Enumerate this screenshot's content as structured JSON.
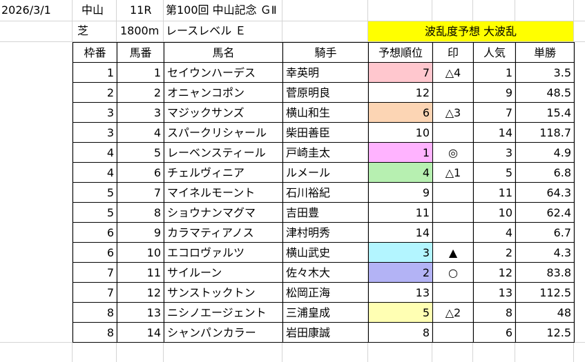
{
  "header": {
    "date": "2026/3/1",
    "venue": "中山",
    "race_no": "11R",
    "race_name": "第100回 中山記念 ＧⅡ",
    "surface": "芝",
    "distance": "1800m",
    "level": "レースレベル Ｅ",
    "forecast": "波乱度予想 大波乱"
  },
  "table": {
    "columns": [
      "枠番",
      "馬番",
      "馬名",
      "騎手",
      "予想順位",
      "印",
      "人気",
      "単勝"
    ],
    "rows": [
      {
        "waku": "1",
        "uma": "1",
        "name": "セイウンハーデス",
        "jockey": "幸英明",
        "rank": "7",
        "mark": "△4",
        "pop": "1",
        "odds": "3.5",
        "color": "#ffc7ce"
      },
      {
        "waku": "2",
        "uma": "2",
        "name": "オニャンコポン",
        "jockey": "菅原明良",
        "rank": "12",
        "mark": "",
        "pop": "9",
        "odds": "48.5",
        "color": ""
      },
      {
        "waku": "3",
        "uma": "3",
        "name": "マジックサンズ",
        "jockey": "横山和生",
        "rank": "6",
        "mark": "△3",
        "pop": "7",
        "odds": "15.4",
        "color": "#fcd5b4"
      },
      {
        "waku": "3",
        "uma": "4",
        "name": "スパークリシャール",
        "jockey": "柴田善臣",
        "rank": "10",
        "mark": "",
        "pop": "14",
        "odds": "118.7",
        "color": ""
      },
      {
        "waku": "4",
        "uma": "5",
        "name": "レーベンスティール",
        "jockey": "戸崎圭太",
        "rank": "1",
        "mark": "◎",
        "pop": "3",
        "odds": "4.9",
        "color": "#ffb3ff"
      },
      {
        "waku": "4",
        "uma": "6",
        "name": "チェルヴィニア",
        "jockey": "ルメール",
        "rank": "4",
        "mark": "△1",
        "pop": "5",
        "odds": "6.8",
        "color": "#b7f0b1"
      },
      {
        "waku": "5",
        "uma": "7",
        "name": "マイネルモーント",
        "jockey": "石川裕紀",
        "rank": "9",
        "mark": "",
        "pop": "11",
        "odds": "64.3",
        "color": ""
      },
      {
        "waku": "5",
        "uma": "8",
        "name": "ショウナンマグマ",
        "jockey": "吉田豊",
        "rank": "11",
        "mark": "",
        "pop": "10",
        "odds": "62.4",
        "color": ""
      },
      {
        "waku": "6",
        "uma": "9",
        "name": "カラマティアノス",
        "jockey": "津村明秀",
        "rank": "14",
        "mark": "",
        "pop": "4",
        "odds": "6.7",
        "color": ""
      },
      {
        "waku": "6",
        "uma": "10",
        "name": "エコロヴァルツ",
        "jockey": "横山武史",
        "rank": "3",
        "mark": "▲",
        "pop": "2",
        "odds": "4.3",
        "color": "#b3f5ff"
      },
      {
        "waku": "7",
        "uma": "11",
        "name": "サイルーン",
        "jockey": "佐々木大",
        "rank": "2",
        "mark": "○",
        "pop": "12",
        "odds": "83.8",
        "color": "#b3b3f5"
      },
      {
        "waku": "7",
        "uma": "12",
        "name": "サンストックトン",
        "jockey": "松岡正海",
        "rank": "13",
        "mark": "",
        "pop": "13",
        "odds": "112.5",
        "color": ""
      },
      {
        "waku": "8",
        "uma": "13",
        "name": "ニシノエージェント",
        "jockey": "三浦皇成",
        "rank": "5",
        "mark": "△2",
        "pop": "8",
        "odds": "48",
        "color": "#ffffb3"
      },
      {
        "waku": "8",
        "uma": "14",
        "name": "シャンパンカラー",
        "jockey": "岩田康誠",
        "rank": "8",
        "mark": "",
        "pop": "6",
        "odds": "12.5",
        "color": ""
      }
    ]
  }
}
